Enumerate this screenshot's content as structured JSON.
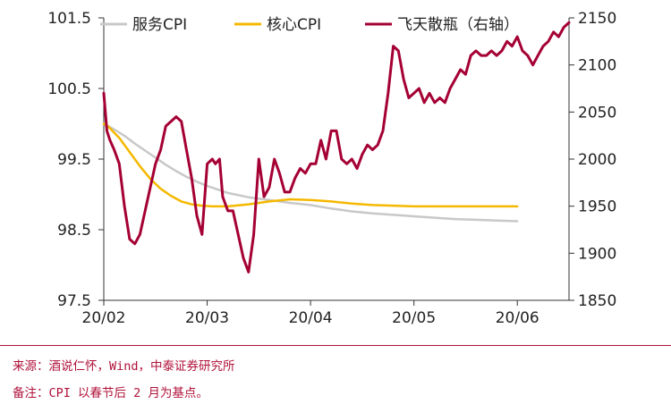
{
  "chart_data": {
    "type": "line",
    "title": "",
    "x_ticks": [
      "20/02",
      "20/03",
      "20/04",
      "20/05",
      "20/06"
    ],
    "left_axis": {
      "ylim": [
        97.5,
        101.5
      ],
      "ticks": [
        "101.5",
        "100.5",
        "99.5",
        "98.5",
        "97.5"
      ]
    },
    "right_axis": {
      "ylim": [
        1850,
        2150
      ],
      "ticks": [
        "2150",
        "2100",
        "2050",
        "2000",
        "1950",
        "1900",
        "1850"
      ]
    },
    "grid": false,
    "legend_position": "top",
    "series": [
      {
        "name": "服务CPI",
        "axis": "left",
        "color": "#c8c8c8",
        "x": [
          0,
          0.1,
          0.2,
          0.3,
          0.4,
          0.5,
          0.6,
          0.7,
          0.8,
          0.9,
          1.0,
          1.2,
          1.4,
          1.6,
          1.8,
          2.0,
          2.2,
          2.4,
          2.6,
          2.8,
          3.0,
          3.2,
          3.4,
          3.6,
          3.8,
          4.0
        ],
        "values": [
          100.0,
          99.92,
          99.83,
          99.72,
          99.62,
          99.52,
          99.42,
          99.33,
          99.25,
          99.18,
          99.12,
          99.02,
          98.96,
          98.92,
          98.88,
          98.85,
          98.8,
          98.76,
          98.73,
          98.71,
          98.69,
          98.67,
          98.65,
          98.64,
          98.63,
          98.62
        ]
      },
      {
        "name": "核心CPI",
        "axis": "left",
        "color": "#f5b800",
        "x": [
          0,
          0.05,
          0.15,
          0.25,
          0.35,
          0.45,
          0.55,
          0.65,
          0.75,
          0.85,
          0.95,
          1.05,
          1.2,
          1.4,
          1.6,
          1.8,
          2.0,
          2.2,
          2.4,
          2.6,
          2.8,
          3.0,
          3.2,
          3.4,
          3.6,
          3.8,
          4.0
        ],
        "values": [
          100.0,
          99.95,
          99.8,
          99.6,
          99.4,
          99.22,
          99.08,
          98.98,
          98.9,
          98.86,
          98.84,
          98.83,
          98.83,
          98.86,
          98.9,
          98.93,
          98.92,
          98.9,
          98.87,
          98.85,
          98.84,
          98.83,
          98.83,
          98.83,
          98.83,
          98.83,
          98.83
        ]
      },
      {
        "name": "飞天散瓶（右轴）",
        "axis": "right",
        "color": "#a50034",
        "x": [
          0,
          0.03,
          0.06,
          0.1,
          0.15,
          0.2,
          0.25,
          0.3,
          0.35,
          0.4,
          0.45,
          0.5,
          0.55,
          0.6,
          0.65,
          0.7,
          0.75,
          0.8,
          0.85,
          0.9,
          0.95,
          1.0,
          1.05,
          1.08,
          1.12,
          1.15,
          1.2,
          1.25,
          1.3,
          1.35,
          1.4,
          1.45,
          1.5,
          1.55,
          1.6,
          1.65,
          1.7,
          1.75,
          1.8,
          1.85,
          1.9,
          1.95,
          2.0,
          2.05,
          2.1,
          2.15,
          2.2,
          2.25,
          2.3,
          2.35,
          2.4,
          2.45,
          2.5,
          2.55,
          2.6,
          2.65,
          2.7,
          2.75,
          2.8,
          2.85,
          2.9,
          2.95,
          3.0,
          3.05,
          3.1,
          3.15,
          3.2,
          3.25,
          3.3,
          3.35,
          3.4,
          3.45,
          3.5,
          3.55,
          3.6,
          3.65,
          3.7,
          3.75,
          3.8,
          3.85,
          3.9,
          3.95,
          4.0,
          4.05,
          4.1,
          4.15,
          4.2,
          4.25,
          4.3,
          4.35,
          4.4,
          4.45,
          4.5
        ],
        "values": [
          2070,
          2030,
          2020,
          2010,
          1995,
          1950,
          1915,
          1910,
          1920,
          1945,
          1970,
          1995,
          2010,
          2035,
          2040,
          2045,
          2040,
          2010,
          1980,
          1940,
          1920,
          1995,
          2000,
          1995,
          2000,
          1960,
          1945,
          1945,
          1920,
          1895,
          1880,
          1920,
          2000,
          1960,
          1970,
          2000,
          1985,
          1965,
          1965,
          1980,
          1990,
          1985,
          1995,
          1995,
          2020,
          2000,
          2030,
          2030,
          2000,
          1995,
          2000,
          1990,
          2005,
          2015,
          2010,
          2015,
          2030,
          2070,
          2120,
          2115,
          2085,
          2065,
          2070,
          2075,
          2060,
          2070,
          2060,
          2065,
          2060,
          2075,
          2085,
          2095,
          2090,
          2110,
          2115,
          2110,
          2110,
          2115,
          2110,
          2115,
          2125,
          2120,
          2130,
          2115,
          2110,
          2100,
          2110,
          2120,
          2125,
          2135,
          2130,
          2140,
          2145
        ]
      }
    ]
  },
  "footer": {
    "source": "来源：酒说仁怀，Wind，中泰证券研究所",
    "note": "备注：CPI 以春节后 2 月为基点。"
  }
}
